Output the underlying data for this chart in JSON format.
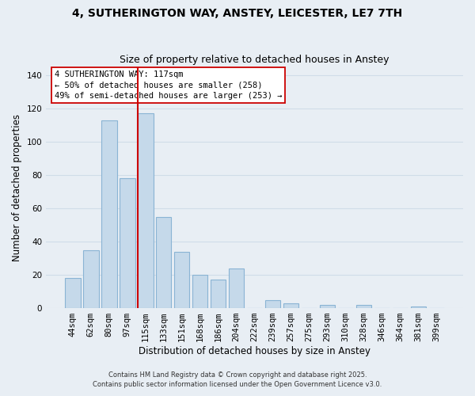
{
  "title": "4, SUTHERINGTON WAY, ANSTEY, LEICESTER, LE7 7TH",
  "subtitle": "Size of property relative to detached houses in Anstey",
  "xlabel": "Distribution of detached houses by size in Anstey",
  "ylabel": "Number of detached properties",
  "bar_labels": [
    "44sqm",
    "62sqm",
    "80sqm",
    "97sqm",
    "115sqm",
    "133sqm",
    "151sqm",
    "168sqm",
    "186sqm",
    "204sqm",
    "222sqm",
    "239sqm",
    "257sqm",
    "275sqm",
    "293sqm",
    "310sqm",
    "328sqm",
    "346sqm",
    "364sqm",
    "381sqm",
    "399sqm"
  ],
  "bar_values": [
    18,
    35,
    113,
    78,
    117,
    55,
    34,
    20,
    17,
    24,
    0,
    5,
    3,
    0,
    2,
    0,
    2,
    0,
    0,
    1,
    0
  ],
  "bar_color": "#c5d9ea",
  "bar_edge_color": "#8ab4d4",
  "redline_index": 4,
  "redline_color": "#cc0000",
  "ylim": [
    0,
    145
  ],
  "yticks": [
    0,
    20,
    40,
    60,
    80,
    100,
    120,
    140
  ],
  "annotation_line1": "4 SUTHERINGTON WAY: 117sqm",
  "annotation_line2": "← 50% of detached houses are smaller (258)",
  "annotation_line3": "49% of semi-detached houses are larger (253) →",
  "annotation_box_color": "#ffffff",
  "annotation_box_edge": "#cc0000",
  "footer1": "Contains HM Land Registry data © Crown copyright and database right 2025.",
  "footer2": "Contains public sector information licensed under the Open Government Licence v3.0.",
  "background_color": "#e8eef4",
  "grid_color": "#d0dce8",
  "title_fontsize": 10,
  "subtitle_fontsize": 9,
  "xlabel_fontsize": 8.5,
  "ylabel_fontsize": 8.5,
  "tick_fontsize": 7.5,
  "annotation_fontsize": 7.5,
  "footer_fontsize": 6
}
